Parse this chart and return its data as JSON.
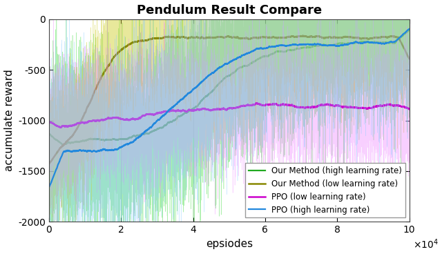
{
  "title": "Pendulum Result Compare",
  "xlabel": "epsiodes",
  "ylabel": "accumulate reward",
  "xlim": [
    0,
    100000
  ],
  "ylim": [
    -2000,
    0
  ],
  "xticks": [
    0,
    20000,
    40000,
    60000,
    80000,
    100000
  ],
  "xtick_labels": [
    "0",
    "2",
    "4",
    "6",
    "8",
    "10"
  ],
  "yticks": [
    0,
    -500,
    -1000,
    -1500,
    -2000
  ],
  "series": [
    {
      "label": "Our Method (high learning rate)",
      "color_raw": "#44dd44",
      "color_smooth": "#22aa22",
      "start_mean": -1250,
      "end_mean": -130,
      "inflection": 45000,
      "steepness": 0.00012,
      "noise_scale": 420,
      "raw_alpha": 0.45,
      "smooth_lw": 1.6,
      "smooth_window": 800
    },
    {
      "label": "Our Method (low learning rate)",
      "color_raw": "#cccc22",
      "color_smooth": "#888800",
      "start_mean": -1400,
      "end_mean": -120,
      "inflection": 12000,
      "steepness": 0.00025,
      "noise_scale": 300,
      "raw_alpha": 0.45,
      "smooth_lw": 1.8,
      "smooth_window": 600
    },
    {
      "label": "PPO (low learning rate)",
      "color_raw": "#ee88ff",
      "color_smooth": "#cc00cc",
      "start_mean": -1100,
      "end_mean": -850,
      "inflection": 20000,
      "steepness": 8e-05,
      "noise_scale": 300,
      "raw_alpha": 0.4,
      "smooth_lw": 1.8,
      "smooth_window": 600
    },
    {
      "label": "PPO (high learning rate)",
      "color_raw": "#88ccff",
      "color_smooth": "#2288dd",
      "start_mean": -1350,
      "end_mean": -140,
      "inflection": 38000,
      "steepness": 0.00013,
      "noise_scale": 420,
      "raw_alpha": 0.4,
      "smooth_lw": 1.6,
      "smooth_window": 800
    }
  ],
  "legend_loc": "lower right",
  "title_fontsize": 13,
  "axis_fontsize": 11,
  "tick_fontsize": 10,
  "background": "#ffffff",
  "seed": 42
}
